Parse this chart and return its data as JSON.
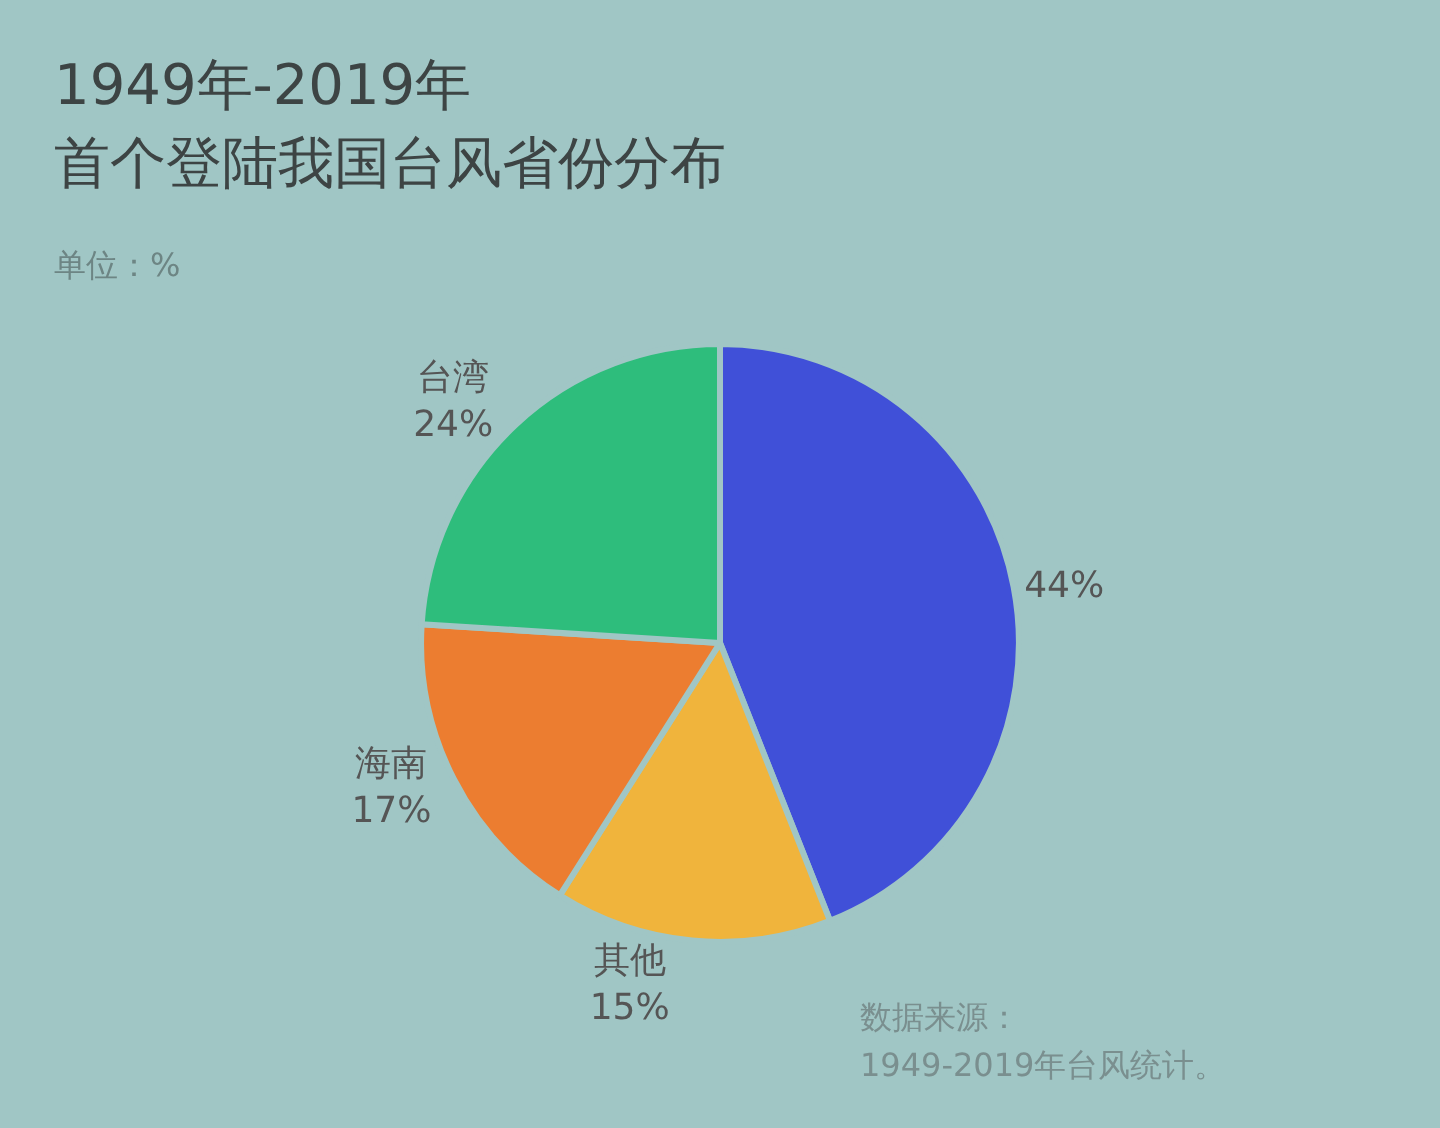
{
  "chart_data": {
    "type": "pie",
    "title": "1949年-2019年",
    "subtitle": "首个登陆我国台风省份分布",
    "categories": [
      null,
      "其他",
      "海南",
      "台湾"
    ],
    "values": [
      44,
      15,
      17,
      24
    ],
    "value_labels": [
      "44%",
      "15%",
      "17%",
      "24%"
    ],
    "colors": [
      "#4050d8",
      "#f0b43c",
      "#ec7d30",
      "#2ebd7c"
    ],
    "annotations": [
      "单位：%",
      "数据来源：",
      "1949-2019年台风统计。"
    ],
    "legend": false
  }
}
